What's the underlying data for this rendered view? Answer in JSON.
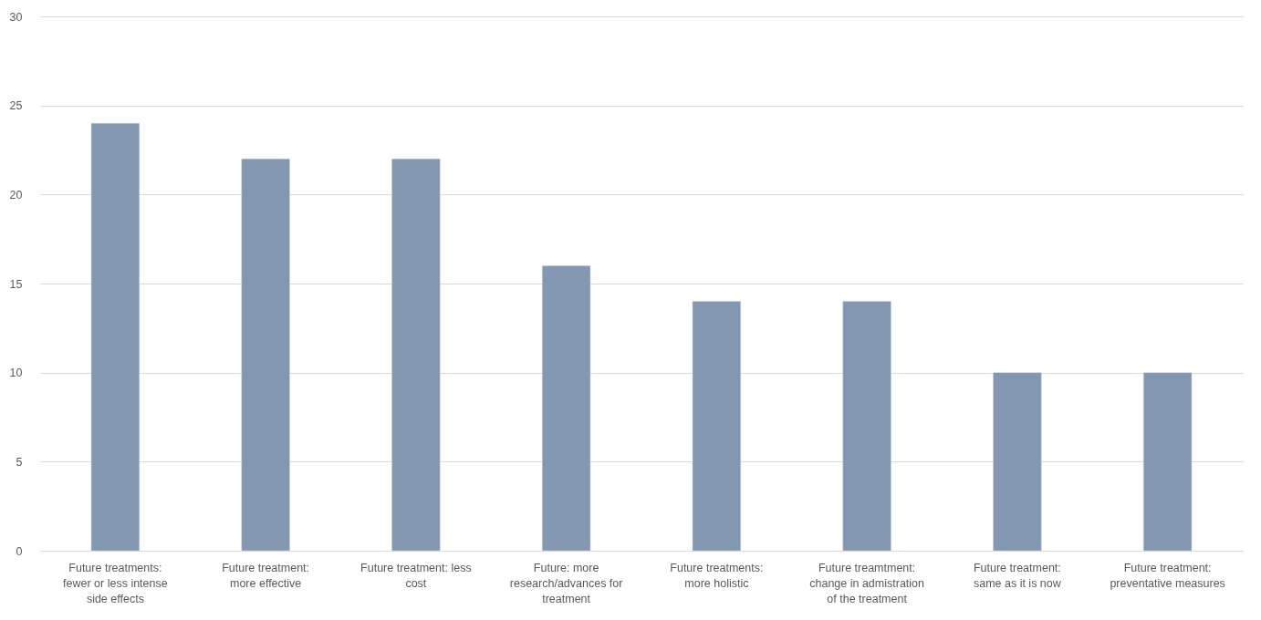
{
  "chart_data": {
    "type": "bar",
    "categories": [
      "Future treatments: fewer or less intense side effects",
      "Future treatment: more effective",
      "Future treatment: less cost",
      "Future: more research/advances for treatment",
      "Future treatments: more holistic",
      "Future treamtment: change in admistration of the treatment",
      "Future treatment: same as it is now",
      "Future treatment: preventative measures"
    ],
    "values": [
      24,
      22,
      22,
      16,
      14,
      14,
      10,
      10
    ],
    "color": "#8497b0",
    "ylim": [
      0,
      30
    ],
    "yticks": [
      0,
      5,
      10,
      15,
      20,
      25,
      30
    ],
    "grid": "y"
  }
}
